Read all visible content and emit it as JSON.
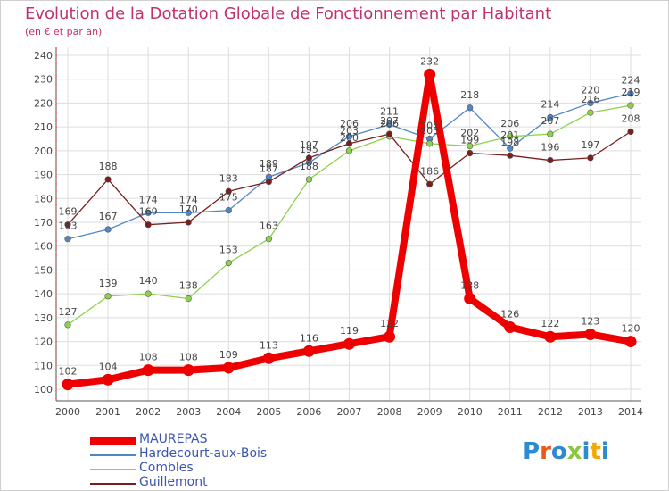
{
  "header": {
    "title": "Evolution de la Dotation Globale de Fonctionnement par Habitant",
    "subtitle": "(en € et par an)"
  },
  "chart_data": {
    "type": "line",
    "title": "Evolution de la Dotation Globale de Fonctionnement par Habitant",
    "subtitle": "(en € et par an)",
    "xlabel": "",
    "ylabel": "",
    "ylim": [
      100,
      240
    ],
    "yticks": [
      100,
      110,
      120,
      130,
      140,
      150,
      160,
      170,
      180,
      190,
      200,
      210,
      220,
      230,
      240
    ],
    "categories": [
      "2000",
      "2001",
      "2002",
      "2003",
      "2004",
      "2005",
      "2006",
      "2007",
      "2008",
      "2009",
      "2010",
      "2011",
      "2012",
      "2013",
      "2014"
    ],
    "grid": true,
    "legend_position": "bottom-left",
    "series": [
      {
        "name": "MAUREPAS",
        "color": "#ee0000",
        "values": [
          102,
          104,
          108,
          108,
          109,
          113,
          116,
          119,
          122,
          232,
          138,
          126,
          122,
          123,
          120
        ]
      },
      {
        "name": "Hardecourt-aux-Bois",
        "color": "#4f86c6",
        "values": [
          163,
          167,
          174,
          174,
          175,
          189,
          195,
          206,
          211,
          205,
          218,
          201,
          214,
          220,
          224
        ]
      },
      {
        "name": "Combles",
        "color": "#8cd24c",
        "values": [
          127,
          139,
          140,
          138,
          153,
          163,
          188,
          200,
          206,
          203,
          202,
          206,
          207,
          216,
          219
        ]
      },
      {
        "name": "Guillemont",
        "color": "#7a1e1e",
        "values": [
          169,
          188,
          169,
          170,
          183,
          187,
          197,
          203,
          207,
          186,
          199,
          198,
          196,
          197,
          208
        ]
      }
    ]
  },
  "logo": {
    "text": "Proxiti",
    "colors": [
      "#2e8bd1",
      "#e8591a",
      "#2e8bd1",
      "#8cc63f",
      "#2e8bd1",
      "#f2a900",
      "#2e8bd1"
    ]
  }
}
